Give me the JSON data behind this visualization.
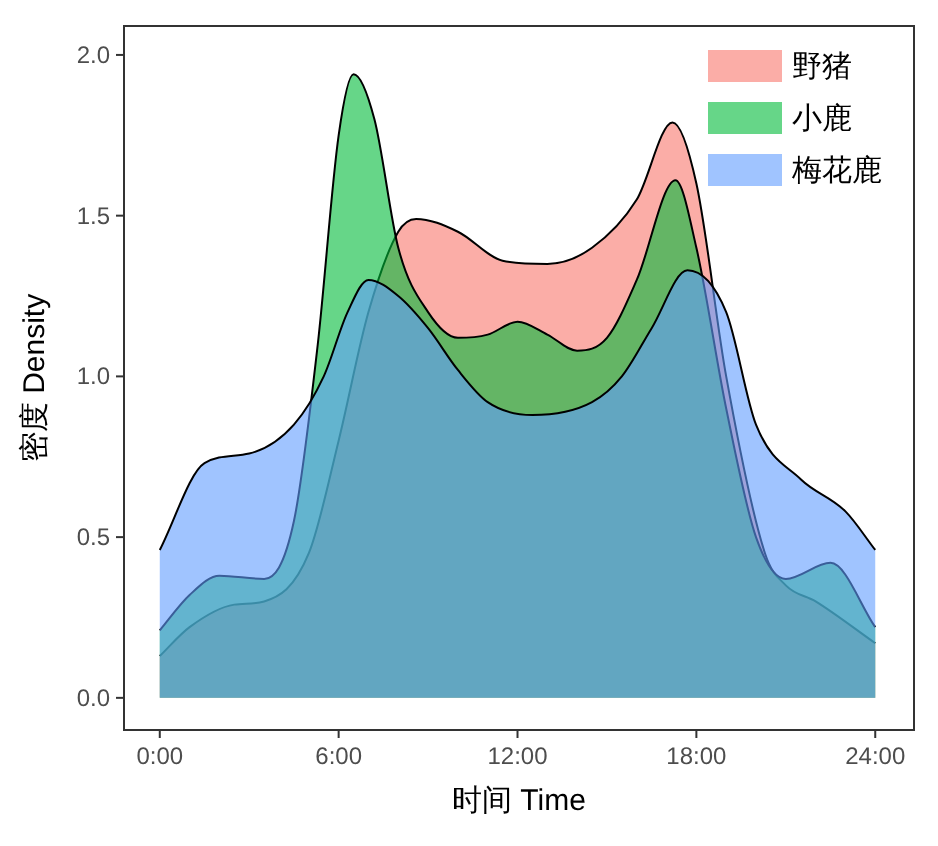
{
  "chart_data": {
    "type": "area",
    "xlabel": "时间 Time",
    "ylabel": "密度 Density",
    "xlim": [
      -1.2,
      25.3
    ],
    "ylim": [
      -0.1,
      2.09
    ],
    "xticks": [
      {
        "value": 0,
        "label": "0:00"
      },
      {
        "value": 6,
        "label": "6:00"
      },
      {
        "value": 12,
        "label": "12:00"
      },
      {
        "value": 18,
        "label": "18:00"
      },
      {
        "value": 24,
        "label": "24:00"
      }
    ],
    "yticks": [
      {
        "value": 0,
        "label": "0.0"
      },
      {
        "value": 0.5,
        "label": "0.5"
      },
      {
        "value": 1,
        "label": "1.0"
      },
      {
        "value": 1.5,
        "label": "1.5"
      },
      {
        "value": 2,
        "label": "2.0"
      }
    ],
    "grid": false,
    "legend": "top right",
    "series": [
      {
        "name": "野猪",
        "color": "#f8766d",
        "x": [
          0,
          1,
          2.5,
          3.5,
          5,
          6,
          7,
          8,
          8.6,
          10,
          11.5,
          13,
          14.5,
          16,
          17.2,
          18,
          19,
          20.3,
          21,
          22,
          24
        ],
        "values": [
          0.13,
          0.22,
          0.29,
          0.3,
          0.45,
          0.8,
          1.2,
          1.45,
          1.49,
          1.45,
          1.36,
          1.35,
          1.4,
          1.55,
          1.79,
          1.6,
          1.0,
          0.45,
          0.35,
          0.3,
          0.17
        ]
      },
      {
        "name": "小鹿",
        "color": "#00ba38",
        "x": [
          0,
          1,
          2,
          3.5,
          4.5,
          5.3,
          6,
          6.5,
          7.2,
          8,
          9,
          10,
          11,
          12,
          13,
          14,
          15,
          16,
          17.3,
          18,
          19,
          20,
          21,
          22.5,
          24
        ],
        "values": [
          0.21,
          0.32,
          0.38,
          0.37,
          0.55,
          1.1,
          1.75,
          1.94,
          1.8,
          1.4,
          1.2,
          1.12,
          1.13,
          1.17,
          1.13,
          1.08,
          1.12,
          1.3,
          1.61,
          1.4,
          0.9,
          0.5,
          0.37,
          0.42,
          0.22
        ]
      },
      {
        "name": "梅花鹿",
        "color": "#619cff",
        "x": [
          0,
          1.5,
          3,
          4.5,
          5.5,
          6.3,
          7,
          8,
          9,
          10,
          11,
          12.5,
          14.5,
          15.5,
          16.5,
          17.7,
          19,
          20,
          21.5,
          23,
          24
        ],
        "values": [
          0.46,
          0.73,
          0.76,
          0.85,
          1.0,
          1.2,
          1.3,
          1.25,
          1.15,
          1.02,
          0.92,
          0.88,
          0.92,
          1.0,
          1.15,
          1.33,
          1.2,
          0.85,
          0.68,
          0.58,
          0.46
        ]
      }
    ]
  }
}
